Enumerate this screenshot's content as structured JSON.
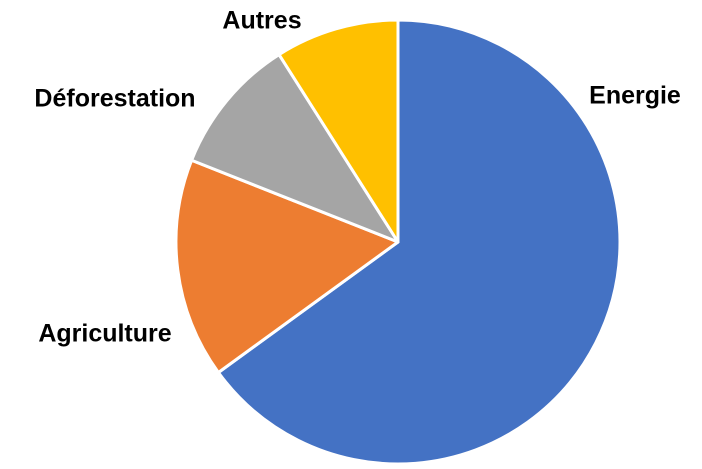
{
  "chart_data": {
    "type": "pie",
    "categories": [
      "Energie",
      "Agriculture",
      "Déforestation",
      "Autres"
    ],
    "values": [
      65,
      16,
      10,
      9
    ],
    "colors": [
      "#4472c4",
      "#ed7d31",
      "#a5a5a5",
      "#ffc000"
    ]
  }
}
